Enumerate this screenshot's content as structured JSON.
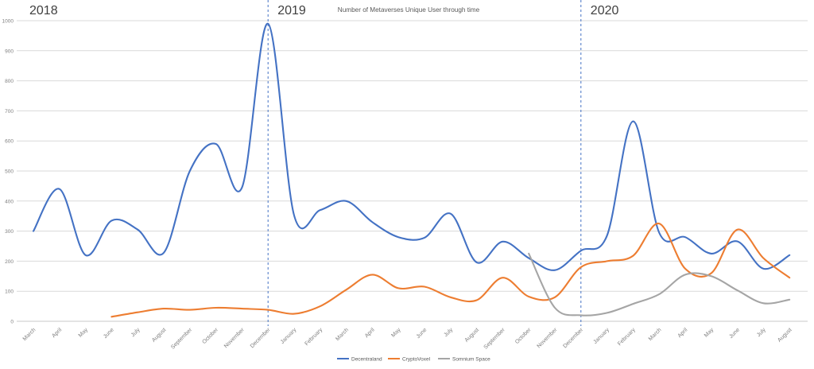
{
  "title": "Number of Metaverses Unique User through time",
  "chart_data": {
    "type": "line",
    "smooth": true,
    "title": "Number of Metaverses Unique User through time",
    "x": [
      "March",
      "April",
      "May",
      "June",
      "July",
      "August",
      "September",
      "October",
      "November",
      "December",
      "January",
      "February",
      "March",
      "April",
      "May",
      "June",
      "July",
      "August",
      "September",
      "October",
      "November",
      "December",
      "January",
      "February",
      "March",
      "April",
      "May",
      "June",
      "July",
      "August"
    ],
    "years": [
      {
        "label": "2018",
        "separator_at_index": null
      },
      {
        "label": "2019",
        "separator_at_index": 9
      },
      {
        "label": "2020",
        "separator_at_index": 21
      }
    ],
    "ylim": [
      0,
      1000
    ],
    "yticks": [
      0,
      100,
      200,
      300,
      400,
      500,
      600,
      700,
      800,
      900,
      1000
    ],
    "grid": "horizontal",
    "legend_position": "bottom",
    "series": [
      {
        "name": "Decentraland",
        "color": "#4472C4",
        "values": [
          300,
          440,
          220,
          335,
          305,
          228,
          500,
          590,
          445,
          990,
          352,
          370,
          400,
          330,
          280,
          278,
          358,
          196,
          265,
          210,
          170,
          235,
          285,
          665,
          295,
          280,
          225,
          266,
          175,
          220
        ]
      },
      {
        "name": "CryptoVoxel",
        "color": "#ED7D31",
        "values": [
          null,
          null,
          null,
          15,
          30,
          42,
          38,
          45,
          42,
          38,
          25,
          50,
          105,
          155,
          110,
          115,
          80,
          70,
          145,
          82,
          80,
          180,
          200,
          218,
          325,
          175,
          160,
          305,
          210,
          145
        ]
      },
      {
        "name": "Somnium Space",
        "color": "#A5A5A5",
        "values": [
          null,
          null,
          null,
          null,
          null,
          null,
          null,
          null,
          null,
          null,
          null,
          null,
          null,
          null,
          null,
          null,
          null,
          null,
          null,
          225,
          45,
          20,
          28,
          58,
          90,
          155,
          150,
          103,
          60,
          72
        ]
      }
    ],
    "colors": {
      "separator": "#4472C4",
      "grid": "#D9D9D9",
      "axis_line": "#C9C9C9",
      "axis_text": "#7F7F7F",
      "year_text": "#404040",
      "title_text": "#595959",
      "legend_text": "#595959"
    }
  }
}
